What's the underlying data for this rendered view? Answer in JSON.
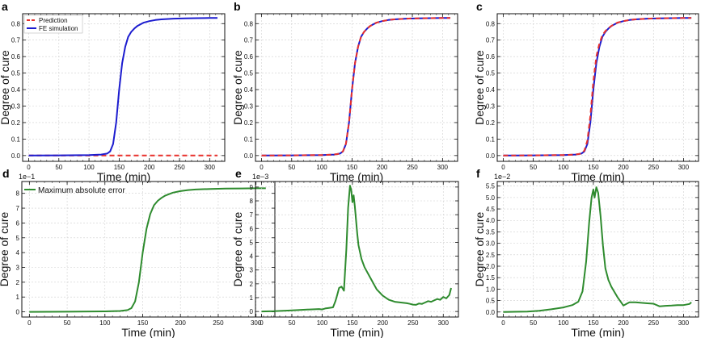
{
  "colors": {
    "prediction": "#e8302c",
    "fe": "#1c1ccf",
    "error": "#2e8b2e",
    "grid": "#cfcfcf"
  },
  "chart_data": [
    {
      "panel": "a",
      "type": "line",
      "xlabel": "Time (min)",
      "ylabel": "Degree of cure",
      "xlim": [
        -10,
        325
      ],
      "ylim": [
        -0.035,
        0.86
      ],
      "xticks": [
        0,
        50,
        100,
        150,
        200,
        250,
        300
      ],
      "yticks": [
        0.0,
        0.1,
        0.2,
        0.3,
        0.4,
        0.5,
        0.6,
        0.7,
        0.8
      ],
      "ytick_labels": [
        "0.0",
        "0.1",
        "0.2",
        "0.3",
        "0.4",
        "0.5",
        "0.6",
        "0.7",
        "0.8"
      ],
      "grid": true,
      "legend": {
        "position": "top-left",
        "entries": [
          "Prediction",
          "FE simulation"
        ]
      },
      "series": [
        {
          "name": "Prediction",
          "style": "dashed",
          "color": "#e8302c",
          "x": [
            0,
            50,
            100,
            150,
            200,
            250,
            313
          ],
          "y": [
            0,
            0,
            0,
            0,
            0,
            0,
            0
          ]
        },
        {
          "name": "FE simulation",
          "style": "solid",
          "color": "#1c1ccf",
          "x": [
            0,
            50,
            100,
            120,
            130,
            135,
            140,
            145,
            150,
            155,
            160,
            165,
            170,
            175,
            180,
            190,
            200,
            210,
            220,
            240,
            260,
            280,
            300,
            313
          ],
          "y": [
            0,
            0.001,
            0.003,
            0.006,
            0.012,
            0.025,
            0.07,
            0.2,
            0.4,
            0.56,
            0.66,
            0.72,
            0.75,
            0.77,
            0.785,
            0.805,
            0.815,
            0.822,
            0.826,
            0.83,
            0.832,
            0.833,
            0.834,
            0.834
          ]
        }
      ]
    },
    {
      "panel": "b",
      "type": "line",
      "xlabel": "Time (min)",
      "ylabel": "Degree of cure",
      "xlim": [
        -10,
        325
      ],
      "ylim": [
        -0.035,
        0.86
      ],
      "xticks": [
        0,
        50,
        100,
        150,
        200,
        250,
        300
      ],
      "yticks": [
        0.0,
        0.1,
        0.2,
        0.3,
        0.4,
        0.5,
        0.6,
        0.7,
        0.8
      ],
      "ytick_labels": [
        "0.0",
        "0.1",
        "0.2",
        "0.3",
        "0.4",
        "0.5",
        "0.6",
        "0.7",
        "0.8"
      ],
      "grid": true,
      "series": [
        {
          "name": "FE simulation",
          "style": "solid",
          "color": "#1c1ccf",
          "x": [
            0,
            50,
            100,
            120,
            130,
            135,
            140,
            145,
            150,
            155,
            160,
            165,
            170,
            175,
            180,
            190,
            200,
            210,
            220,
            240,
            260,
            280,
            300,
            313
          ],
          "y": [
            0,
            0.001,
            0.003,
            0.006,
            0.012,
            0.025,
            0.07,
            0.2,
            0.4,
            0.56,
            0.66,
            0.72,
            0.75,
            0.77,
            0.785,
            0.805,
            0.815,
            0.822,
            0.826,
            0.83,
            0.832,
            0.833,
            0.834,
            0.834
          ]
        },
        {
          "name": "Prediction",
          "style": "dashed",
          "color": "#e8302c",
          "x": [
            0,
            50,
            100,
            120,
            130,
            135,
            140,
            145,
            150,
            155,
            160,
            165,
            170,
            175,
            180,
            190,
            200,
            210,
            220,
            240,
            260,
            280,
            300,
            313
          ],
          "y": [
            0,
            0.001,
            0.003,
            0.006,
            0.012,
            0.026,
            0.072,
            0.2,
            0.4,
            0.56,
            0.66,
            0.72,
            0.75,
            0.77,
            0.785,
            0.805,
            0.815,
            0.822,
            0.826,
            0.83,
            0.832,
            0.833,
            0.834,
            0.834
          ]
        }
      ]
    },
    {
      "panel": "c",
      "type": "line",
      "xlabel": "Time (min)",
      "ylabel": "Degree of cure",
      "xlim": [
        -10,
        325
      ],
      "ylim": [
        -0.035,
        0.86
      ],
      "xticks": [
        0,
        50,
        100,
        150,
        200,
        250,
        300
      ],
      "yticks": [
        0.0,
        0.1,
        0.2,
        0.3,
        0.4,
        0.5,
        0.6,
        0.7,
        0.8
      ],
      "ytick_labels": [
        "0.0",
        "0.1",
        "0.2",
        "0.3",
        "0.4",
        "0.5",
        "0.6",
        "0.7",
        "0.8"
      ],
      "grid": true,
      "series": [
        {
          "name": "FE simulation",
          "style": "solid",
          "color": "#1c1ccf",
          "x": [
            0,
            50,
            100,
            120,
            130,
            135,
            140,
            145,
            150,
            155,
            160,
            165,
            170,
            175,
            180,
            190,
            200,
            210,
            220,
            240,
            260,
            280,
            300,
            313
          ],
          "y": [
            0,
            0.001,
            0.003,
            0.006,
            0.012,
            0.025,
            0.07,
            0.2,
            0.4,
            0.56,
            0.66,
            0.72,
            0.75,
            0.77,
            0.785,
            0.805,
            0.815,
            0.822,
            0.826,
            0.83,
            0.832,
            0.833,
            0.834,
            0.834
          ]
        },
        {
          "name": "Prediction",
          "style": "dashed",
          "color": "#e8302c",
          "x": [
            0,
            50,
            100,
            120,
            130,
            135,
            140,
            145,
            150,
            155,
            160,
            165,
            170,
            175,
            180,
            190,
            200,
            210,
            220,
            240,
            260,
            280,
            300,
            313
          ],
          "y": [
            0,
            0.001,
            0.003,
            0.006,
            0.012,
            0.03,
            0.09,
            0.24,
            0.45,
            0.6,
            0.68,
            0.73,
            0.755,
            0.772,
            0.786,
            0.806,
            0.815,
            0.822,
            0.826,
            0.83,
            0.832,
            0.833,
            0.834,
            0.834
          ]
        }
      ]
    },
    {
      "panel": "d",
      "type": "line",
      "xlabel": "Time (min)",
      "ylabel": "Degree of cure",
      "multiplier": "1e−1",
      "xlim": [
        -10,
        325
      ],
      "ylim": [
        -0.35,
        8.8
      ],
      "xticks": [
        0,
        50,
        100,
        150,
        200,
        250,
        300
      ],
      "yticks": [
        0,
        1,
        2,
        3,
        4,
        5,
        6,
        7,
        8
      ],
      "ytick_labels": [
        "0",
        "1",
        "2",
        "3",
        "4",
        "5",
        "6",
        "7",
        "8"
      ],
      "grid": true,
      "legend": {
        "position": "top-left",
        "entries": [
          "Maximum absolute error"
        ]
      },
      "series": [
        {
          "name": "Maximum absolute error",
          "style": "solid",
          "color": "#2e8b2e",
          "x": [
            0,
            50,
            100,
            120,
            130,
            135,
            140,
            145,
            150,
            155,
            160,
            165,
            170,
            175,
            180,
            190,
            200,
            210,
            220,
            240,
            260,
            280,
            300,
            313
          ],
          "y": [
            0,
            0.01,
            0.03,
            0.06,
            0.12,
            0.25,
            0.7,
            2.0,
            4.0,
            5.6,
            6.6,
            7.2,
            7.5,
            7.7,
            7.85,
            8.05,
            8.15,
            8.22,
            8.26,
            8.3,
            8.32,
            8.33,
            8.34,
            8.34
          ]
        }
      ]
    },
    {
      "panel": "e",
      "type": "line",
      "xlabel": "Time (min)",
      "ylabel": "Degree of cure",
      "multiplier": "1e−3",
      "xlim": [
        -10,
        325
      ],
      "ylim": [
        -0.4,
        9.4
      ],
      "xticks": [
        0,
        50,
        100,
        150,
        200,
        250,
        300
      ],
      "yticks": [
        0,
        1,
        2,
        3,
        4,
        5,
        6,
        7,
        8,
        9
      ],
      "ytick_labels": [
        "0",
        "1",
        "2",
        "3",
        "4",
        "5",
        "6",
        "7",
        "8",
        "9"
      ],
      "grid": true,
      "series": [
        {
          "name": "Maximum absolute error",
          "style": "solid",
          "color": "#2e8b2e",
          "x": [
            0,
            20,
            40,
            60,
            80,
            95,
            100,
            105,
            110,
            118,
            122,
            125,
            128,
            132,
            136,
            140,
            143,
            146,
            148,
            150,
            152,
            154,
            156,
            158,
            160,
            165,
            170,
            180,
            190,
            200,
            210,
            220,
            230,
            240,
            245,
            250,
            255,
            260,
            265,
            270,
            275,
            280,
            285,
            290,
            295,
            300,
            305,
            310,
            313
          ],
          "y": [
            0.0,
            0.02,
            0.06,
            0.1,
            0.15,
            0.18,
            0.15,
            0.22,
            0.25,
            0.3,
            0.75,
            1.2,
            1.7,
            1.8,
            1.5,
            4.5,
            7.5,
            9.1,
            8.8,
            7.9,
            8.4,
            7.6,
            6.6,
            5.6,
            4.8,
            3.8,
            3.2,
            2.4,
            1.6,
            1.15,
            0.85,
            0.7,
            0.65,
            0.6,
            0.55,
            0.5,
            0.48,
            0.58,
            0.55,
            0.65,
            0.75,
            0.7,
            0.8,
            0.9,
            0.85,
            1.05,
            0.95,
            1.2,
            1.7
          ]
        }
      ]
    },
    {
      "panel": "f",
      "type": "line",
      "xlabel": "Time (min)",
      "ylabel": "Degree of cure",
      "multiplier": "1e−2",
      "xlim": [
        -10,
        325
      ],
      "ylim": [
        -0.22,
        5.7
      ],
      "xticks": [
        0,
        50,
        100,
        150,
        200,
        250,
        300
      ],
      "yticks": [
        0.0,
        0.5,
        1.0,
        1.5,
        2.0,
        2.5,
        3.0,
        3.5,
        4.0,
        4.5,
        5.0,
        5.5
      ],
      "ytick_labels": [
        "0.0",
        "0.5",
        "1.0",
        "1.5",
        "2.0",
        "2.5",
        "3.0",
        "3.5",
        "4.0",
        "4.5",
        "5.0",
        "5.5"
      ],
      "grid": true,
      "series": [
        {
          "name": "Maximum absolute error",
          "style": "solid",
          "color": "#2e8b2e",
          "x": [
            0,
            40,
            60,
            80,
            100,
            115,
            125,
            132,
            138,
            143,
            147,
            150,
            152,
            155,
            158,
            162,
            166,
            170,
            175,
            180,
            190,
            200,
            205,
            210,
            220,
            230,
            240,
            250,
            260,
            270,
            280,
            290,
            300,
            310,
            313
          ],
          "y": [
            0.0,
            0.02,
            0.05,
            0.12,
            0.2,
            0.3,
            0.45,
            0.9,
            2.2,
            3.9,
            5.0,
            5.35,
            5.0,
            5.45,
            5.2,
            4.2,
            2.9,
            1.9,
            1.4,
            1.1,
            0.65,
            0.28,
            0.35,
            0.42,
            0.42,
            0.4,
            0.38,
            0.36,
            0.25,
            0.27,
            0.28,
            0.3,
            0.3,
            0.35,
            0.42
          ]
        }
      ]
    }
  ]
}
